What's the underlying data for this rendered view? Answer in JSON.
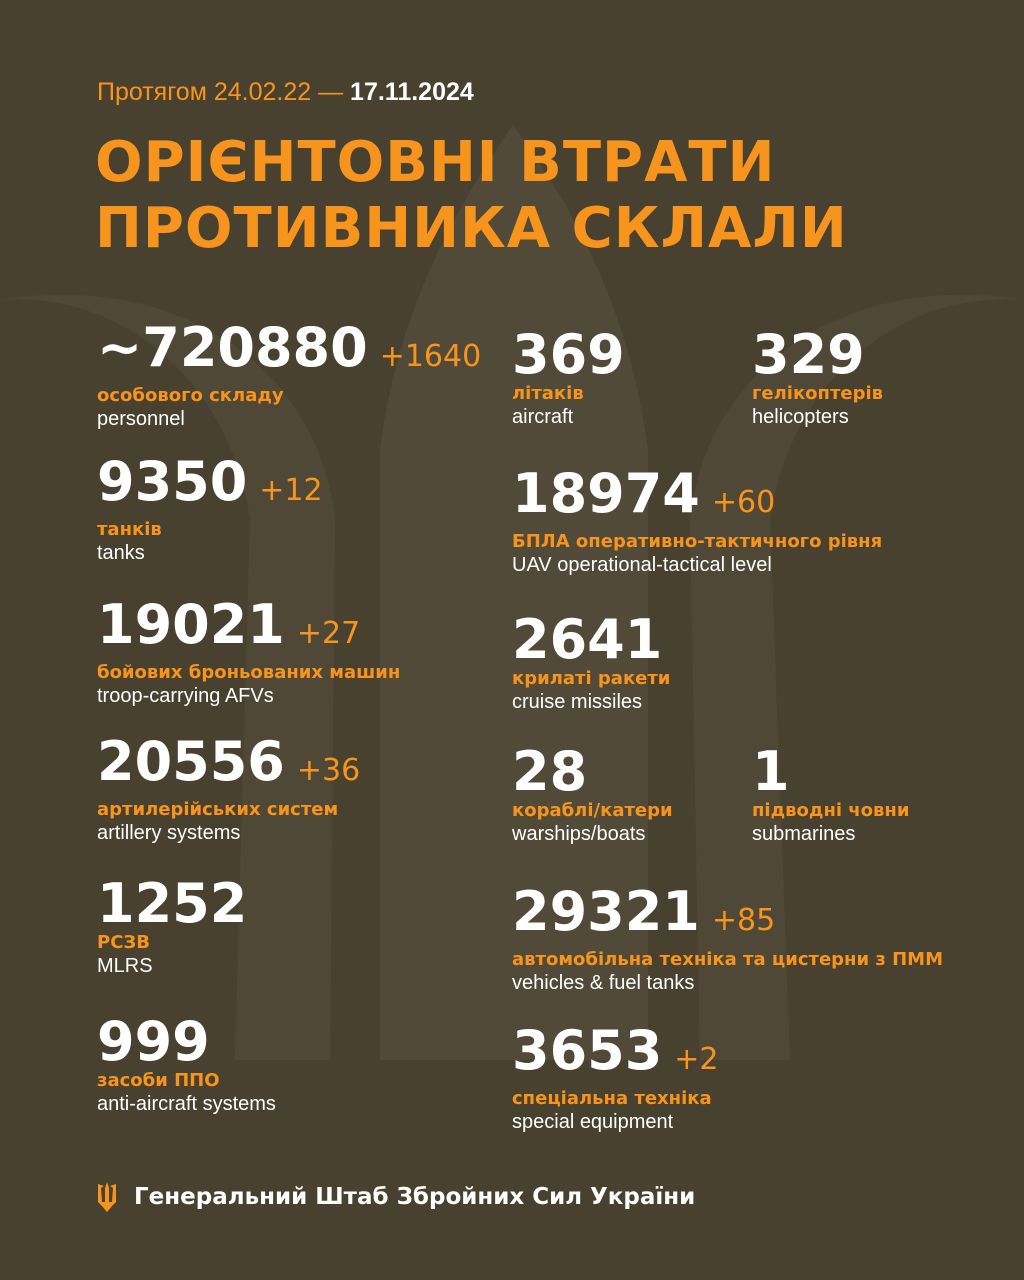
{
  "colors": {
    "background": "#48412f",
    "accent": "#f7941d",
    "text": "#ffffff"
  },
  "header": {
    "period_prefix": "Протягом 24.02.22 —",
    "period_end": "17.11.2024",
    "title_line1": "ОРІЄНТОВНІ ВТРАТИ",
    "title_line2": "ПРОТИВНИКА СКЛАЛИ"
  },
  "stats": [
    {
      "value": "~720880",
      "delta": "+1640",
      "ua": "особового складу",
      "en": "personnel"
    },
    {
      "value": "9350",
      "delta": "+12",
      "ua": "танків",
      "en": "tanks"
    },
    {
      "value": "19021",
      "delta": "+27",
      "ua": "бойових броньованих машин",
      "en": "troop-carrying AFVs"
    },
    {
      "value": "20556",
      "delta": "+36",
      "ua": "артилерійських систем",
      "en": "artillery systems"
    },
    {
      "value": "1252",
      "delta": "",
      "ua": "РСЗВ",
      "en": "MLRS"
    },
    {
      "value": "999",
      "delta": "",
      "ua": "засоби ППО",
      "en": "anti-aircraft systems"
    },
    {
      "value": "369",
      "delta": "",
      "ua": "літаків",
      "en": "aircraft"
    },
    {
      "value": "329",
      "delta": "",
      "ua": "гелікоптерів",
      "en": "helicopters"
    },
    {
      "value": "18974",
      "delta": "+60",
      "ua": "БПЛА оперативно-тактичного рівня",
      "en": "UAV operational-tactical level"
    },
    {
      "value": "2641",
      "delta": "",
      "ua": "крилаті ракети",
      "en": "cruise missiles"
    },
    {
      "value": "28",
      "delta": "",
      "ua": "кораблі/катери",
      "en": "warships/boats"
    },
    {
      "value": "1",
      "delta": "",
      "ua": "підводні човни",
      "en": "submarines"
    },
    {
      "value": "29321",
      "delta": "+85",
      "ua": "автомобільна техніка та цистерни з ПММ",
      "en": "vehicles & fuel tanks"
    },
    {
      "value": "3653",
      "delta": "+2",
      "ua": "спеціальна техніка",
      "en": "special equipment"
    }
  ],
  "footer": {
    "icon": "trident-icon",
    "text": "Генеральний Штаб Збройних Сил України"
  }
}
